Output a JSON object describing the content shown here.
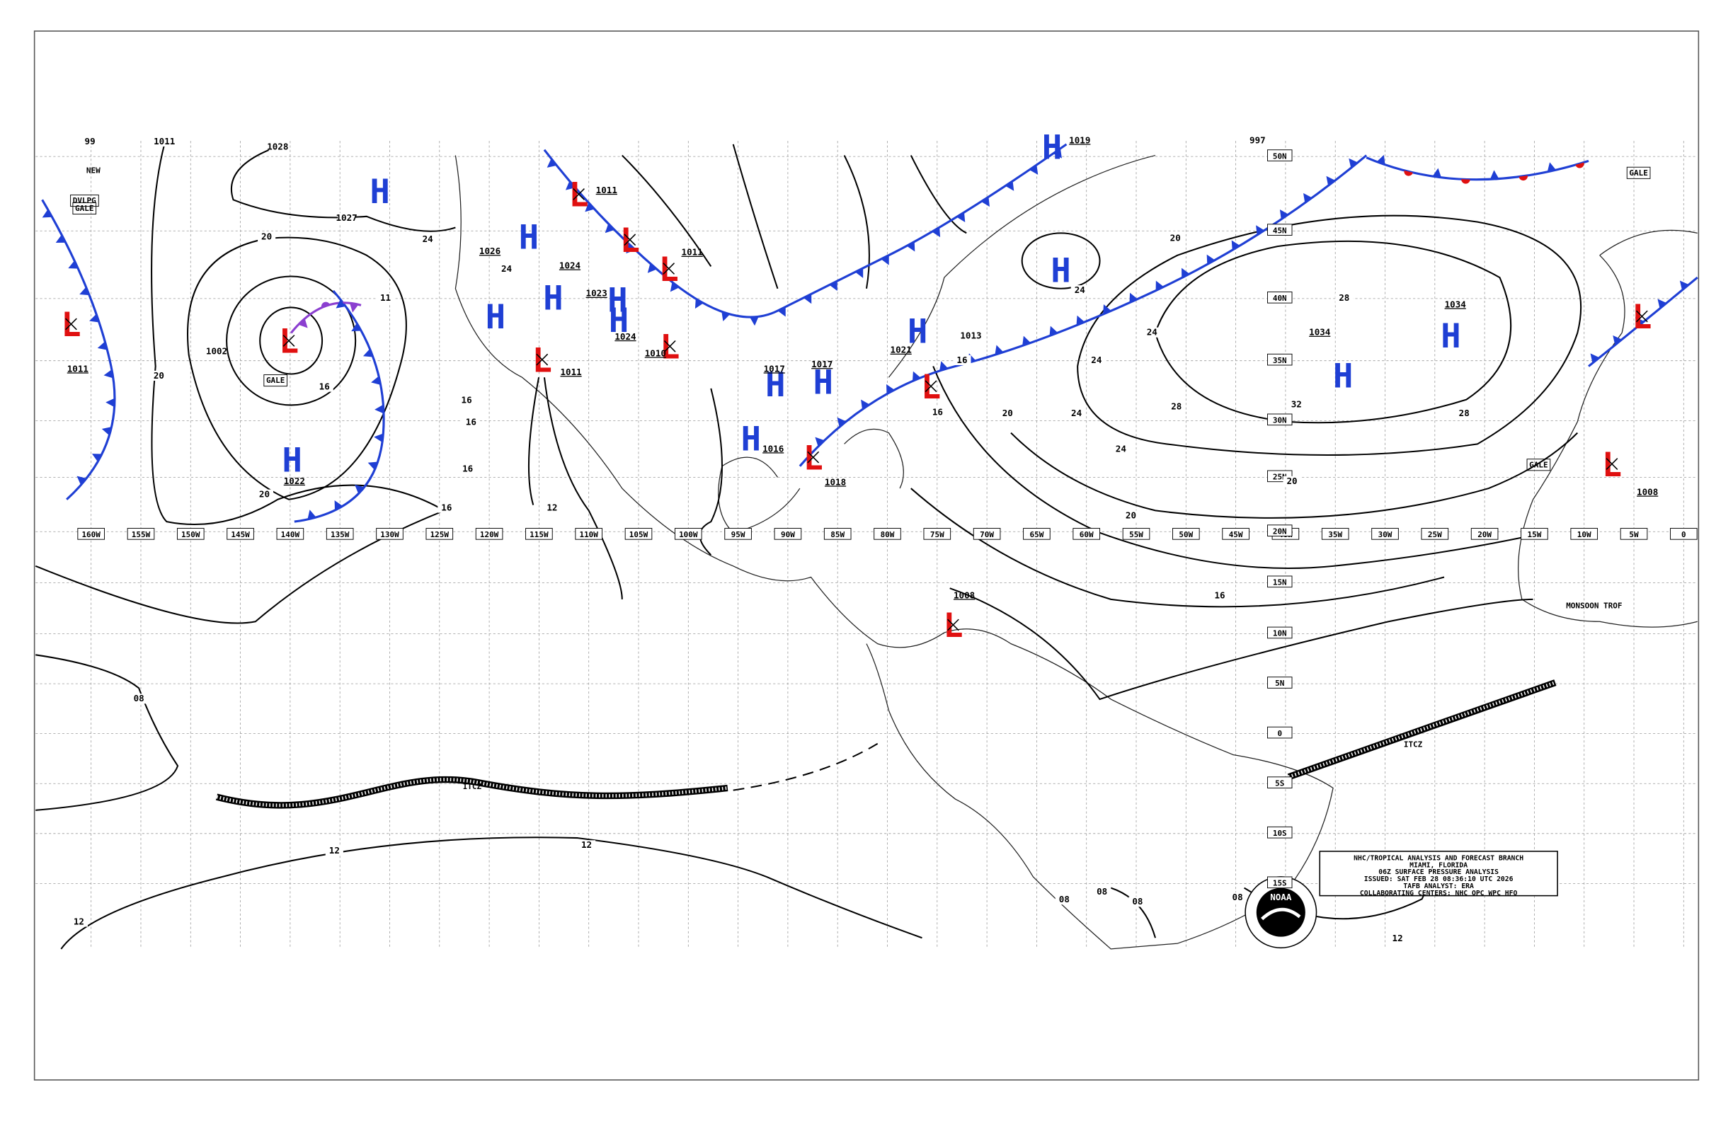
{
  "map": {
    "title_block": [
      "NHC/TROPICAL ANALYSIS AND FORECAST BRANCH",
      "MIAMI, FLORIDA",
      "06Z SURFACE PRESSURE ANALYSIS",
      "ISSUED: SAT FEB 28 08:36:10 UTC 2026",
      "TAFB ANALYST: ERA",
      "COLLABORATING CENTERS: NHC OPC WPC HFO"
    ],
    "logo": "NOAA",
    "longitude_labels": [
      "160W",
      "155W",
      "150W",
      "145W",
      "140W",
      "135W",
      "130W",
      "125W",
      "120W",
      "115W",
      "110W",
      "105W",
      "100W",
      "95W",
      "90W",
      "85W",
      "80W",
      "75W",
      "70W",
      "65W",
      "60W",
      "55W",
      "50W",
      "45W",
      "40W",
      "35W",
      "30W",
      "25W",
      "20W",
      "15W",
      "10W",
      "5W",
      "0"
    ],
    "latitude_labels": [
      "50N",
      "45N",
      "40N",
      "35N",
      "30N",
      "25N",
      "20N",
      "15N",
      "10N",
      "5N",
      "0",
      "5S",
      "10S",
      "15S"
    ],
    "pressure_centers": [
      {
        "symbol": "H"
      },
      {
        "symbol": "H",
        "pressure": "1022"
      },
      {
        "symbol": "L",
        "pressure": "1011"
      },
      {
        "symbol": "L"
      },
      {
        "symbol": "L",
        "pressure": "1011"
      },
      {
        "symbol": "L",
        "pressure": "1011"
      },
      {
        "symbol": "L"
      },
      {
        "symbol": "L",
        "pressure": "1011"
      },
      {
        "symbol": "L",
        "pressure": "1010"
      },
      {
        "symbol": "L",
        "pressure": "1018"
      },
      {
        "symbol": "L"
      },
      {
        "symbol": "L",
        "pressure": "1008"
      },
      {
        "symbol": "L"
      },
      {
        "symbol": "L",
        "pressure": "1008"
      },
      {
        "symbol": "H",
        "pressure": "1026"
      },
      {
        "symbol": "H",
        "pressure": "1024"
      },
      {
        "symbol": "H"
      },
      {
        "symbol": "H",
        "pressure": "1023"
      },
      {
        "symbol": "H",
        "pressure": "1024"
      },
      {
        "symbol": "H",
        "pressure": "1017"
      },
      {
        "symbol": "H",
        "pressure": "1017"
      },
      {
        "symbol": "H",
        "pressure": "1016"
      },
      {
        "symbol": "H",
        "pressure": "1021"
      },
      {
        "symbol": "H"
      },
      {
        "symbol": "H",
        "pressure": "1034"
      },
      {
        "symbol": "H",
        "pressure": "1034"
      },
      {
        "symbol": "H",
        "pressure": "1019"
      }
    ],
    "isobar_labels": [
      "1028",
      "1027",
      "24",
      "20",
      "20",
      "16",
      "20",
      "16",
      "16",
      "16",
      "16",
      "12",
      "24",
      "16",
      "16",
      "20",
      "24",
      "24",
      "24",
      "20",
      "24",
      "20",
      "24",
      "28",
      "28",
      "32",
      "28",
      "20",
      "16",
      "08",
      "12",
      "12",
      "12",
      "08",
      "08",
      "08",
      "08",
      "12",
      "997",
      "1013",
      "1011",
      "99",
      "11",
      "1002"
    ],
    "annotations": [
      "GALE",
      "DVLPG",
      "GALE",
      "NEW",
      "ITCZ",
      "ITCZ",
      "GALE",
      "GALE",
      "MONSOON TROF"
    ]
  }
}
